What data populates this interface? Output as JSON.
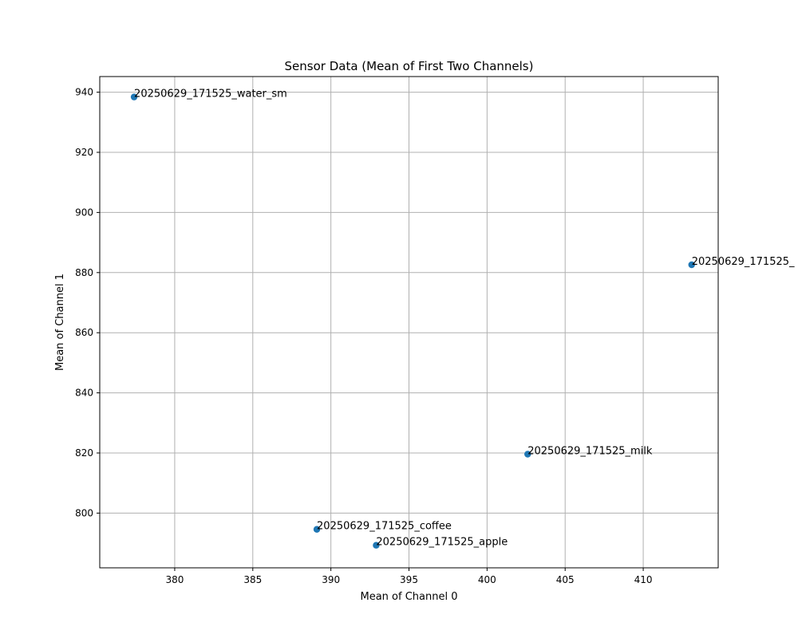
{
  "chart_data": {
    "type": "scatter",
    "title": "Sensor Data (Mean of First Two Channels)",
    "xlabel": "Mean of Channel 0",
    "ylabel": "Mean of Channel 1",
    "xlim": [
      375.2,
      414.8
    ],
    "ylim": [
      781.8,
      945.2
    ],
    "xticks": [
      380,
      385,
      390,
      395,
      400,
      405,
      410
    ],
    "yticks": [
      800,
      820,
      840,
      860,
      880,
      900,
      920,
      940
    ],
    "grid": true,
    "marker_color": "#1f77b4",
    "points": [
      {
        "label": "20250629_171525_water_sm",
        "x": 377.4,
        "y": 938.4
      },
      {
        "label": "20250629_171525_",
        "x": 413.1,
        "y": 882.6
      },
      {
        "label": "20250629_171525_milk",
        "x": 402.6,
        "y": 819.6
      },
      {
        "label": "20250629_171525_coffee",
        "x": 389.1,
        "y": 794.6
      },
      {
        "label": "20250629_171525_apple",
        "x": 392.9,
        "y": 789.3
      }
    ]
  }
}
